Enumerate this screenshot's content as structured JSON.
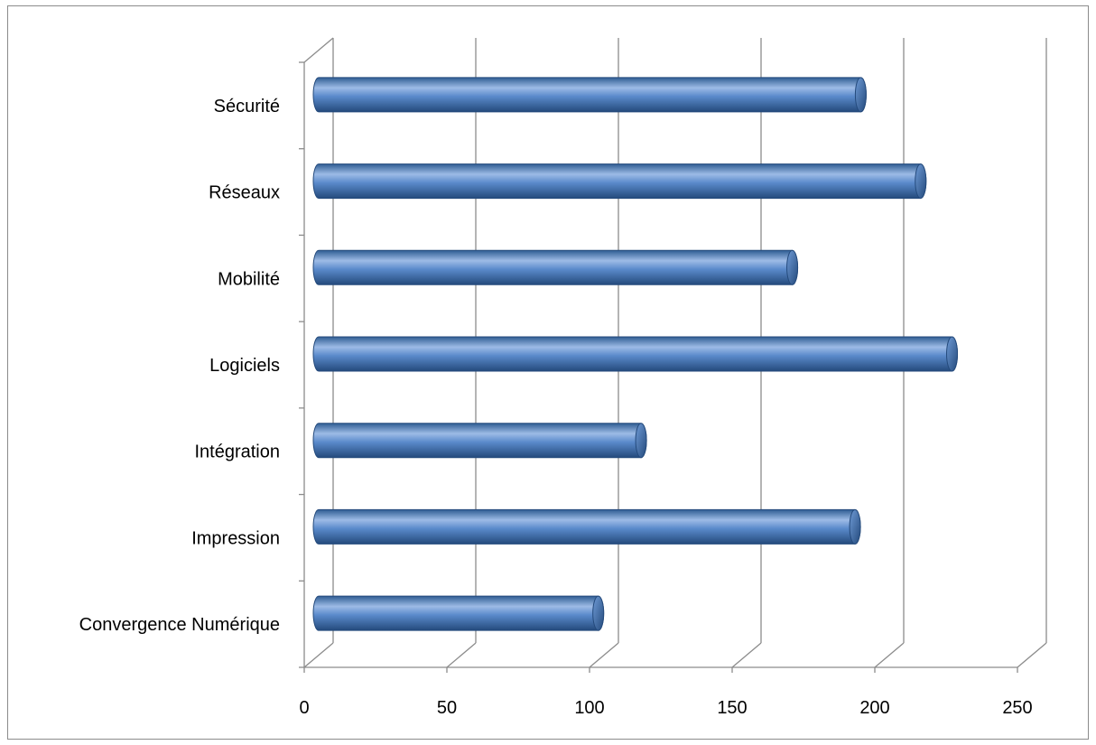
{
  "chart_data": {
    "type": "bar",
    "orientation": "horizontal",
    "style": "3d-cylinder",
    "title": "",
    "xlabel": "",
    "ylabel": "",
    "categories": [
      "Sécurité",
      "Réseaux",
      "Mobilité",
      "Logiciels",
      "Intégration",
      "Impression",
      "Convergence Numérique"
    ],
    "values": [
      190,
      211,
      166,
      222,
      113,
      188,
      98
    ],
    "xlim": [
      0,
      250
    ],
    "xticks": [
      0,
      50,
      100,
      150,
      200,
      250
    ],
    "xtick_labels": [
      "0",
      "50",
      "100",
      "150",
      "200",
      "250"
    ],
    "grid": true,
    "legend": "none",
    "colors": {
      "bar": "#4f81bd",
      "bar_light": "#9dbbe6",
      "bar_dark": "#244a7c",
      "bar_cap": "#2f5d93",
      "grid": "#8c8c8c"
    }
  }
}
